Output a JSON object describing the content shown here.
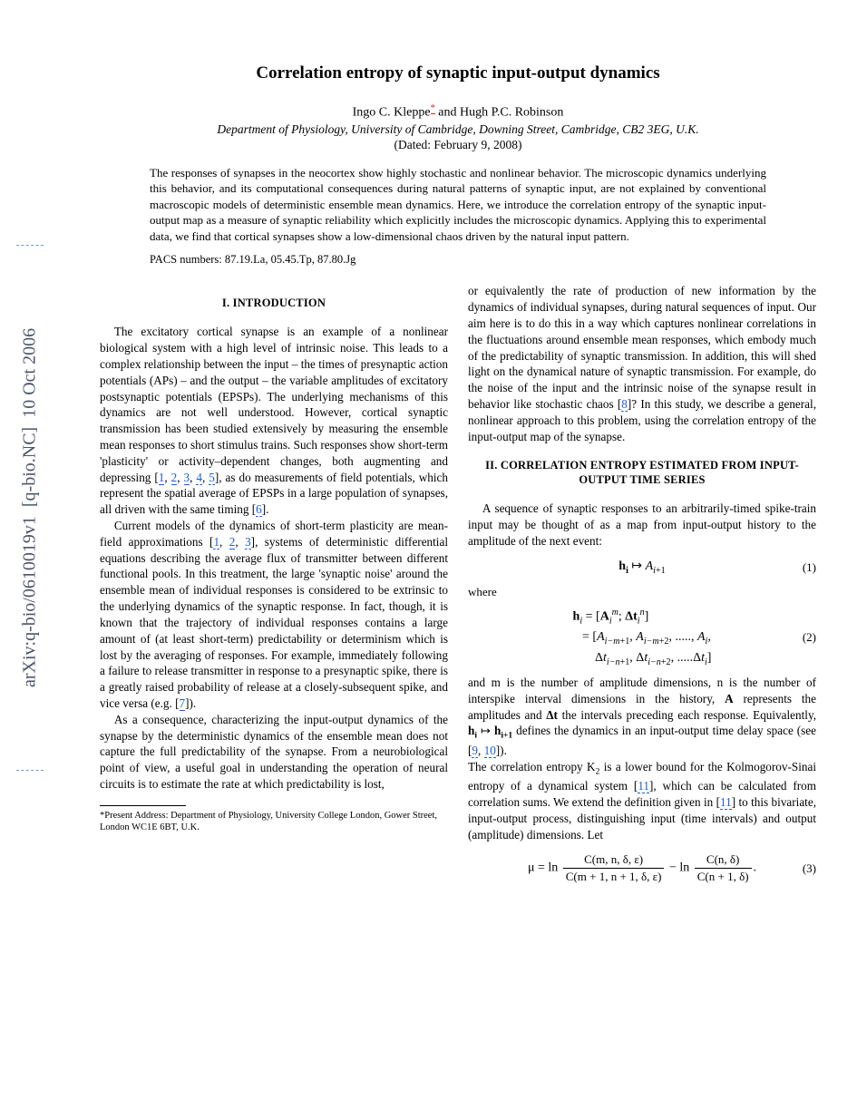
{
  "arxiv": {
    "identifier": "arXiv:q-bio/0610019v1",
    "category": "[q-bio.NC]",
    "date": "10 Oct 2006"
  },
  "header": {
    "title": "Correlation entropy of synaptic input-output dynamics",
    "authors": "Ingo C. Kleppe",
    "author_mark": "*",
    "authors2": " and Hugh P.C. Robinson",
    "affiliation": "Department of Physiology, University of Cambridge, Downing Street, Cambridge, CB2 3EG, U.K.",
    "dated": "(Dated: February 9, 2008)"
  },
  "abstract": "The responses of synapses in the neocortex show highly stochastic and nonlinear behavior. The microscopic dynamics underlying this behavior, and its computational consequences during natural patterns of synaptic input, are not explained by conventional macroscopic models of deterministic ensemble mean dynamics. Here, we introduce the correlation entropy of the synaptic input-output map as a measure of synaptic reliability which explicitly includes the microscopic dynamics. Applying this to experimental data, we find that cortical synapses show a low-dimensional chaos driven by the natural input pattern.",
  "pacs": "PACS numbers: 87.19.La, 05.45.Tp, 87.80.Jg",
  "sections": {
    "s1_heading": "I.   INTRODUCTION",
    "s2_heading": "II.   CORRELATION ENTROPY ESTIMATED FROM INPUT-OUTPUT TIME SERIES"
  },
  "body": {
    "p1a": "The excitatory cortical synapse is an example of a nonlinear biological system with a high level of intrinsic noise. This leads to a complex relationship between the input – the times of presynaptic action potentials (APs) – and the output – the variable amplitudes of excitatory postsynaptic potentials (EPSPs). The underlying mechanisms of this dynamics are not well understood. However, cortical synaptic transmission has been studied extensively by measuring the ensemble mean responses to short stimulus trains. Such responses show short-term 'plasticity' or activity–dependent changes, both augmenting and depressing [",
    "c1": "1",
    "p1b": ", ",
    "c2": "2",
    "p1c": ", ",
    "c3": "3",
    "p1d": ", ",
    "c4": "4",
    "p1e": ", ",
    "c5": "5",
    "p1f": "], as do measurements of field potentials, which represent the spatial average of EPSPs in a large population of synapses, all driven with the same timing [",
    "c6": "6",
    "p1g": "].",
    "p2a": "Current models of the dynamics of short-term plasticity are mean-field approximations [",
    "c1b": "1",
    "p2b": ", ",
    "c2b": "2",
    "p2c": ", ",
    "c3b": "3",
    "p2d": "], systems of deterministic differential equations describing the average flux of transmitter between different functional pools. In this treatment, the large 'synaptic noise' around the ensemble mean of individual responses is considered to be extrinsic to the underlying dynamics of the synaptic response. In fact, though, it is known that the trajectory of individual responses contains a large amount of (at least short-term) predictability or determinism which is lost by the averaging of responses. For example, immediately following a failure to release transmitter in response to a presynaptic spike, there is a greatly raised probability of release at a closely-subsequent spike, and vice versa (e.g. [",
    "c7": "7",
    "p2e": "]).",
    "p3": "As a consequence, characterizing the input-output dynamics of the synapse by the deterministic dynamics of the ensemble mean does not capture the full predictability of the synapse. From a neurobiological point of view, a useful goal in understanding the operation of neural circuits is to estimate the rate at which predictability is lost,",
    "p4a": "or equivalently the rate of production of new information by the dynamics of individual synapses, during natural sequences of input. Our aim here is to do this in a way which captures nonlinear correlations in the fluctuations around ensemble mean responses, which embody much of the predictability of synaptic transmission. In addition, this will shed light on the dynamical nature of synaptic transmission. For example, do the noise of the input and the intrinsic noise of the synapse result in behavior like stochastic chaos [",
    "c8": "8",
    "p4b": "]? In this study, we describe a general, nonlinear approach to this problem, using the correlation entropy of the input-output map of the synapse.",
    "p5": "A sequence of synaptic responses to an arbitrarily-timed spike-train input may be thought of as a map from input-output history to the amplitude of the next event:",
    "where": "where",
    "p6a": "and m is the number of amplitude dimensions, n is the number of interspike interval dimensions in the history, ",
    "p6b": " represents the amplitudes and ",
    "p6c": " the intervals preceding each response. Equivalently, ",
    "p6d": " defines the dynamics in an input-output time delay space (see [",
    "c9": "9",
    "p6e": ", ",
    "c10": "10",
    "p6f": "]).",
    "p7a": "The correlation entropy K",
    "p7a2": " is a lower bound for the Kolmogorov-Sinai entropy of a dynamical system [",
    "c11": "11",
    "p7b": "], which can be calculated from correlation sums. We extend the definition given in [",
    "c11b": "11",
    "p7c": "] to this bivariate, input-output process, distinguishing input (time intervals) and output (amplitude) dimensions. Let"
  },
  "eq": {
    "eq1_label": "(1)",
    "eq2_label": "(2)",
    "eq3_label": "(3)",
    "mu_eq_prefix": "μ = ln",
    "minus_ln": " − ln",
    "frac1_num": "C(m, n, δ, ε)",
    "frac1_den": "C(m + 1, n + 1, δ, ε)",
    "frac2_num": "C(n, δ)",
    "frac2_den": "C(n + 1, δ)",
    "period": "."
  },
  "footnote": {
    "mark": "*",
    "text": "Present Address: Department of Physiology, University College London, Gower Street, London WC1E 6BT, U.K."
  },
  "style": {
    "link_color": "#1a5fd6",
    "background_color": "#ffffff",
    "text_color": "#000000"
  }
}
